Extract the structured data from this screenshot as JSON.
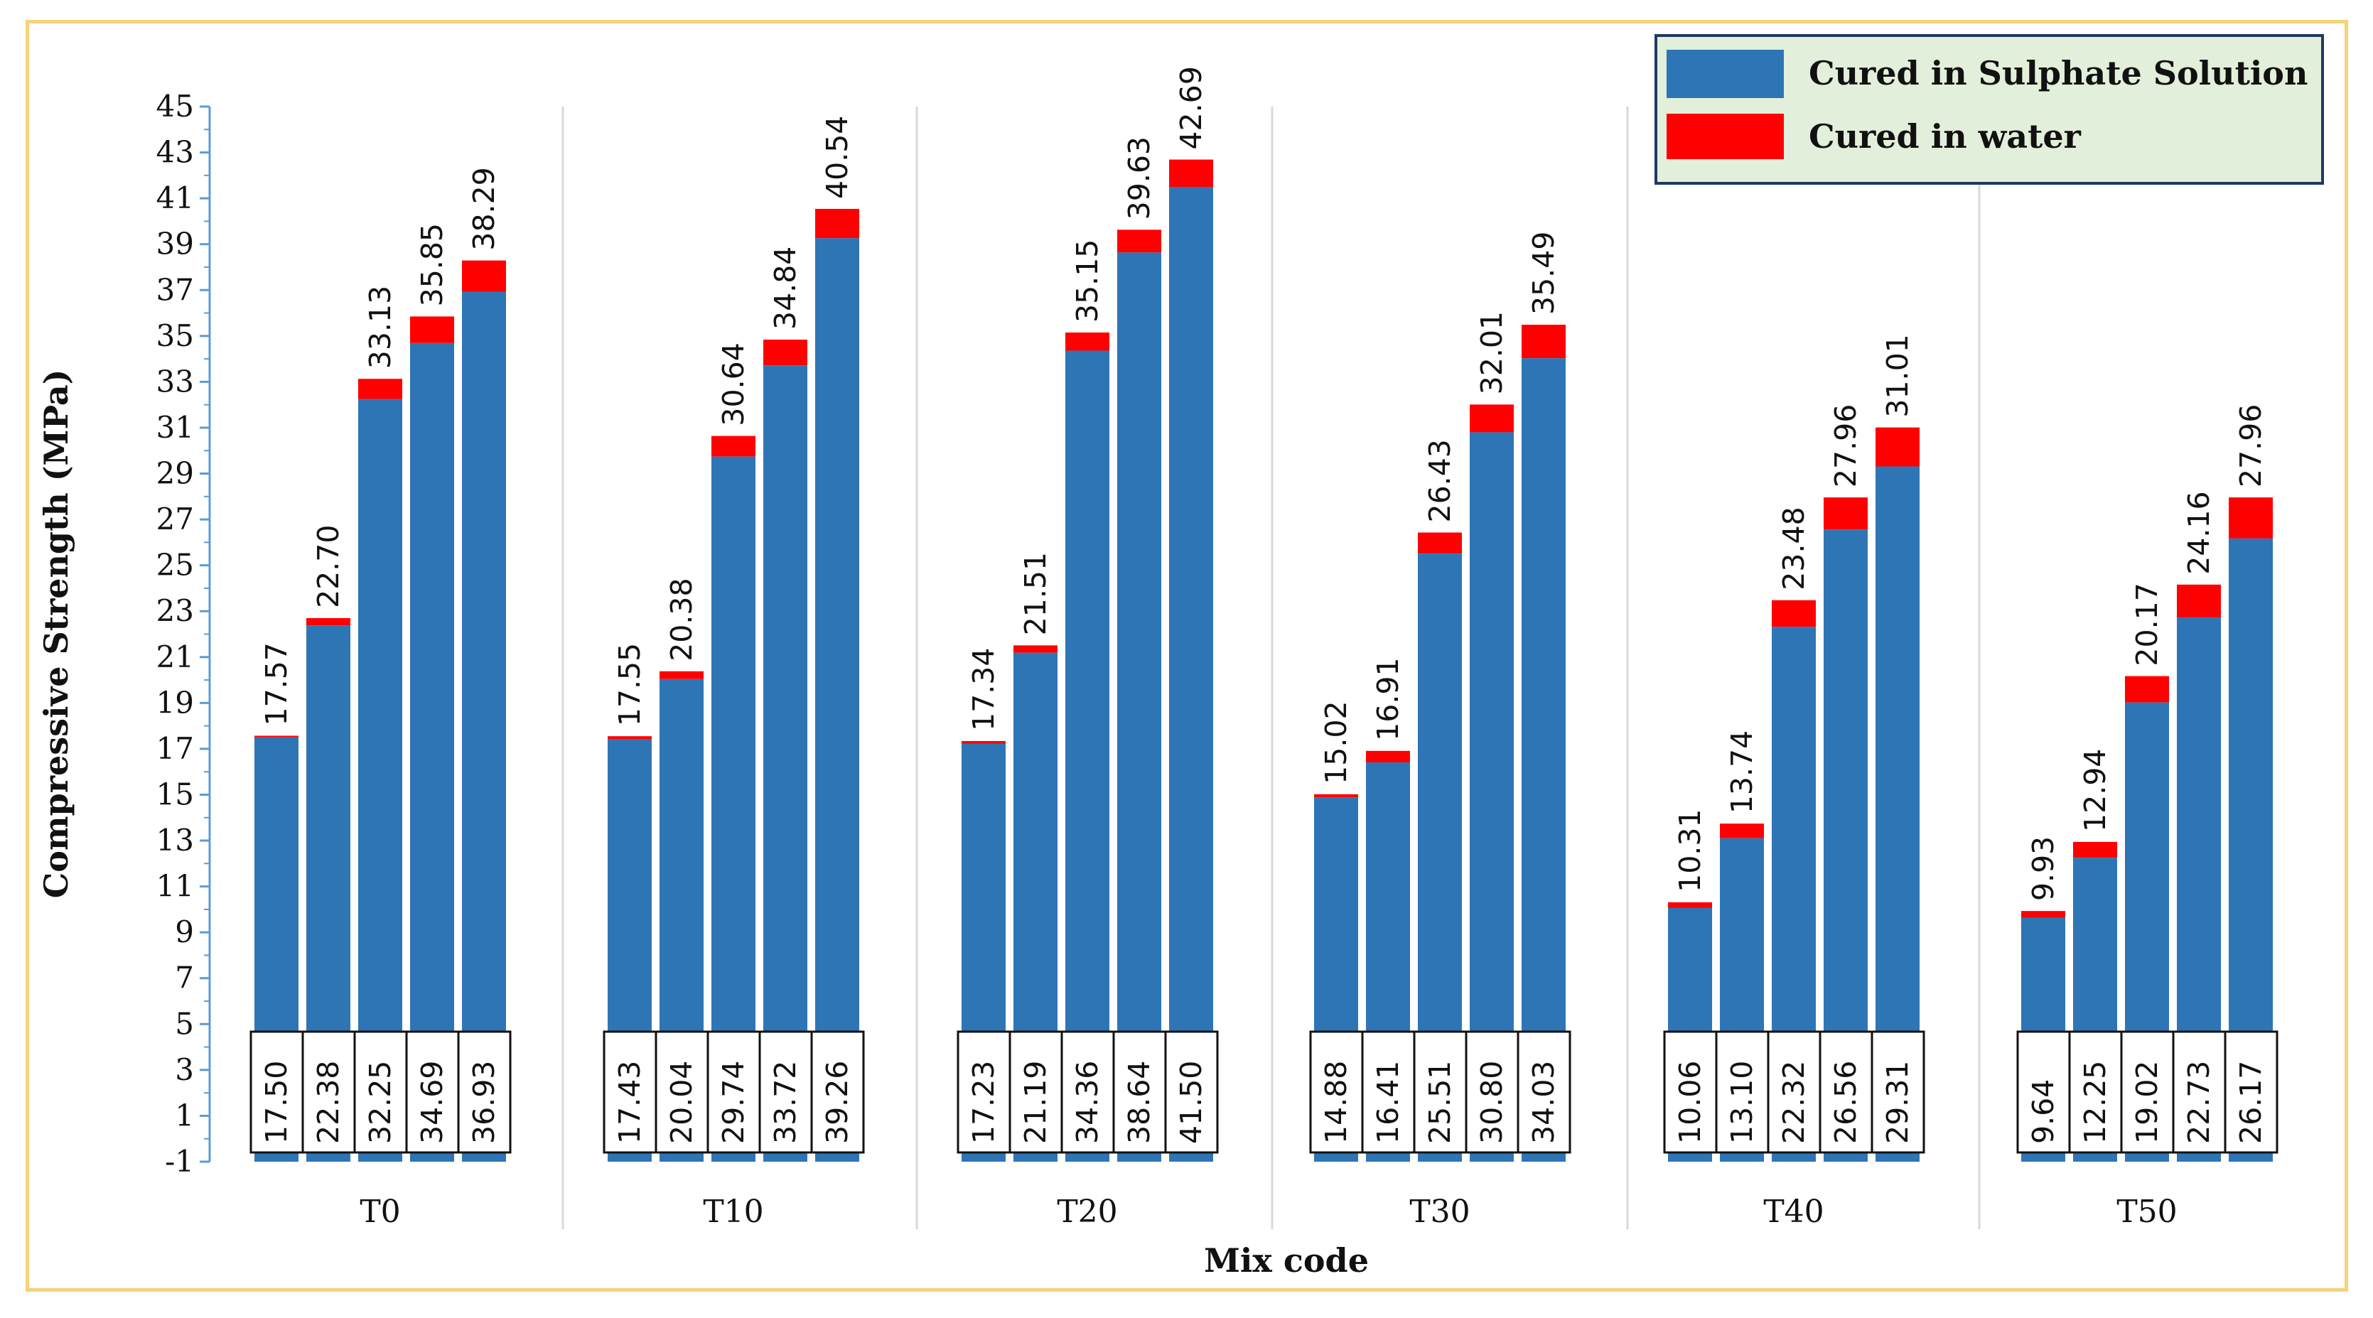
{
  "chart_data": {
    "type": "bar",
    "title": "",
    "xlabel": "Mix code",
    "ylabel": "Compressive Strength (MPa)",
    "ylim": [
      -1,
      45
    ],
    "yticks": [
      "-1",
      "1",
      "3",
      "5",
      "7",
      "9",
      "11",
      "13",
      "15",
      "17",
      "19",
      "21",
      "23",
      "25",
      "27",
      "29",
      "31",
      "33",
      "35",
      "37",
      "39",
      "41",
      "43",
      "45"
    ],
    "categories": [
      "T0",
      "T10",
      "T20",
      "T30",
      "T40",
      "T50"
    ],
    "series": [
      {
        "name": "Cured in Sulphate Solution",
        "color": "#2e75b6",
        "values": [
          [
            17.5,
            22.38,
            32.25,
            34.69,
            36.93
          ],
          [
            17.43,
            20.04,
            29.74,
            33.72,
            39.26
          ],
          [
            17.23,
            21.19,
            34.36,
            38.64,
            41.5
          ],
          [
            14.88,
            16.41,
            25.51,
            30.8,
            34.03
          ],
          [
            10.06,
            13.1,
            22.32,
            26.56,
            29.31
          ],
          [
            9.64,
            12.25,
            19.02,
            22.73,
            26.17
          ]
        ],
        "labels": [
          [
            "17.50",
            "22.38",
            "32.25",
            "34.69",
            "36.93"
          ],
          [
            "17.43",
            "20.04",
            "29.74",
            "33.72",
            "39.26"
          ],
          [
            "17.23",
            "21.19",
            "34.36",
            "38.64",
            "41.50"
          ],
          [
            "14.88",
            "16.41",
            "25.51",
            "30.80",
            "34.03"
          ],
          [
            "10.06",
            "13.10",
            "22.32",
            "26.56",
            "29.31"
          ],
          [
            "9.64",
            "12.25",
            "19.02",
            "22.73",
            "26.17"
          ]
        ]
      },
      {
        "name": "Cured in water",
        "color": "#ff0000",
        "values": [
          [
            17.57,
            22.7,
            33.13,
            35.85,
            38.29
          ],
          [
            17.55,
            20.38,
            30.64,
            34.84,
            40.54
          ],
          [
            17.34,
            21.51,
            35.15,
            39.63,
            42.69
          ],
          [
            15.02,
            16.91,
            26.43,
            32.01,
            35.49
          ],
          [
            10.31,
            13.74,
            23.48,
            27.96,
            31.01
          ],
          [
            9.93,
            12.94,
            20.17,
            24.16,
            27.96
          ]
        ],
        "labels": [
          [
            "17.57",
            "22.70",
            "33.13",
            "35.85",
            "38.29"
          ],
          [
            "17.55",
            "20.38",
            "30.64",
            "34.84",
            "40.54"
          ],
          [
            "17.34",
            "21.51",
            "35.15",
            "39.63",
            "42.69"
          ],
          [
            "15.02",
            "16.91",
            "26.43",
            "32.01",
            "35.49"
          ],
          [
            "10.31",
            "13.74",
            "23.48",
            "27.96",
            "31.01"
          ],
          [
            "9.93",
            "12.94",
            "20.17",
            "24.16",
            "27.96"
          ]
        ]
      }
    ],
    "legend": {
      "position": "top-right",
      "background": "#e2efda",
      "border": "#203864"
    },
    "grid": false,
    "group_separators": true,
    "frame_color": "#f6d27a"
  }
}
